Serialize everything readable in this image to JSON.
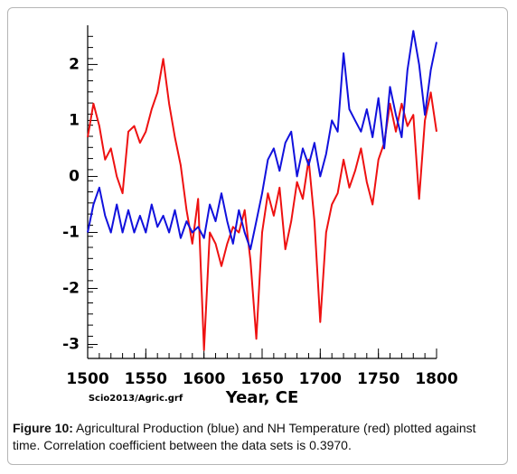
{
  "chart_data": {
    "type": "line",
    "x_label": "Year, CE",
    "source": "Scio2013/Agric.grf",
    "caption_label": "Figure 10:",
    "caption_text": "Agricultural Production (blue) and NH Temperature (red) plotted against time. Correlation coefficient between the data sets is 0.3970.",
    "x": [
      1500,
      1505,
      1510,
      1515,
      1520,
      1525,
      1530,
      1535,
      1540,
      1545,
      1550,
      1555,
      1560,
      1565,
      1570,
      1575,
      1580,
      1585,
      1590,
      1595,
      1600,
      1605,
      1610,
      1615,
      1620,
      1625,
      1630,
      1635,
      1640,
      1645,
      1650,
      1655,
      1660,
      1665,
      1670,
      1675,
      1680,
      1685,
      1690,
      1695,
      1700,
      1705,
      1710,
      1715,
      1720,
      1725,
      1730,
      1735,
      1740,
      1745,
      1750,
      1755,
      1760,
      1765,
      1770,
      1775,
      1780,
      1785,
      1790,
      1795,
      1800
    ],
    "series": [
      {
        "name": "NH Temperature",
        "color": "#ee1111",
        "values": [
          0.7,
          1.3,
          0.9,
          0.3,
          0.5,
          0.0,
          -0.3,
          0.8,
          0.9,
          0.6,
          0.8,
          1.2,
          1.5,
          2.1,
          1.3,
          0.7,
          0.2,
          -0.6,
          -1.2,
          -0.4,
          -3.1,
          -1.0,
          -1.2,
          -1.6,
          -1.2,
          -0.9,
          -1.0,
          -0.6,
          -1.5,
          -2.9,
          -1.0,
          -0.3,
          -0.7,
          -0.2,
          -1.3,
          -0.8,
          -0.1,
          -0.4,
          0.3,
          -0.8,
          -2.6,
          -1.0,
          -0.5,
          -0.3,
          0.3,
          -0.2,
          0.1,
          0.5,
          -0.1,
          -0.5,
          0.3,
          0.6,
          1.3,
          0.8,
          1.3,
          0.9,
          1.1,
          -0.4,
          1.0,
          1.5,
          0.8
        ]
      },
      {
        "name": "Agricultural Production",
        "color": "#1111dd",
        "values": [
          -1.0,
          -0.5,
          -0.2,
          -0.7,
          -1.0,
          -0.5,
          -1.0,
          -0.6,
          -1.0,
          -0.7,
          -1.0,
          -0.5,
          -0.9,
          -0.7,
          -1.0,
          -0.6,
          -1.1,
          -0.8,
          -1.0,
          -0.9,
          -1.1,
          -0.5,
          -0.8,
          -0.3,
          -0.8,
          -1.2,
          -0.6,
          -1.0,
          -1.3,
          -0.8,
          -0.3,
          0.3,
          0.5,
          0.1,
          0.6,
          0.8,
          0.0,
          0.5,
          0.2,
          0.6,
          0.0,
          0.4,
          1.0,
          0.8,
          2.2,
          1.2,
          1.0,
          0.8,
          1.2,
          0.7,
          1.4,
          0.5,
          1.6,
          1.1,
          0.7,
          1.9,
          2.6,
          2.0,
          1.1,
          1.9,
          2.4
        ]
      }
    ],
    "xlim": [
      1500,
      1800
    ],
    "xticks": [
      1500,
      1550,
      1600,
      1650,
      1700,
      1750,
      1800
    ],
    "ylim": [
      -3.25,
      2.7
    ],
    "yticks": [
      -3,
      -2,
      -1,
      0,
      1,
      2
    ],
    "grid": false
  }
}
